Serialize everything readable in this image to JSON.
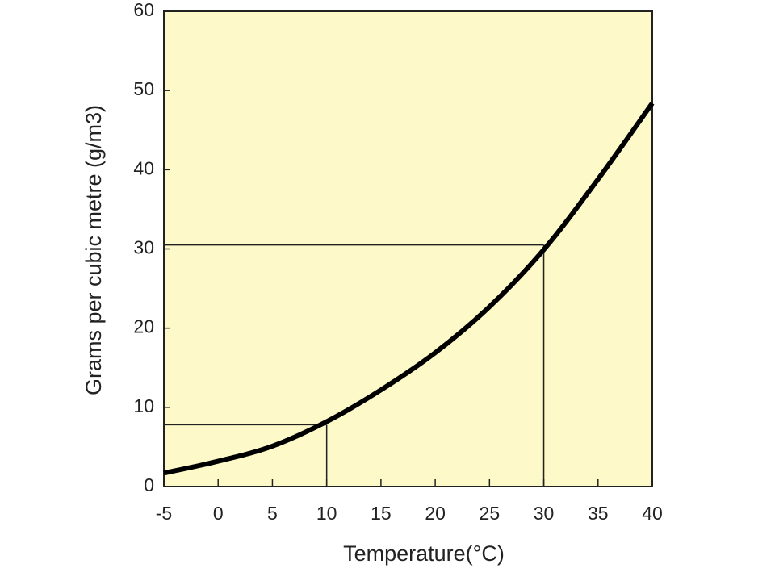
{
  "chart_data": {
    "type": "line",
    "x_label": "Temperature(°C)",
    "y_label": "Grams per cubic metre (g/m3)",
    "x": [
      -5,
      0,
      5,
      10,
      15,
      20,
      25,
      30,
      35,
      40
    ],
    "series": [
      {
        "color": "#000000",
        "values": [
          1.7,
          3.2,
          5.1,
          8.2,
          12.2,
          16.9,
          22.7,
          29.9,
          38.8,
          48.4
        ]
      }
    ],
    "reference_lines": [
      {
        "x": 10,
        "y": 7.8
      },
      {
        "x": 30,
        "y": 30.5
      }
    ],
    "xlim": [
      -5,
      40
    ],
    "xticks": [
      -5,
      0,
      5,
      10,
      15,
      20,
      25,
      30,
      35,
      40
    ],
    "ylim": [
      0,
      60
    ],
    "yticks": [
      0,
      10,
      20,
      30,
      40,
      50,
      60
    ],
    "background": "#fdf9c8"
  }
}
